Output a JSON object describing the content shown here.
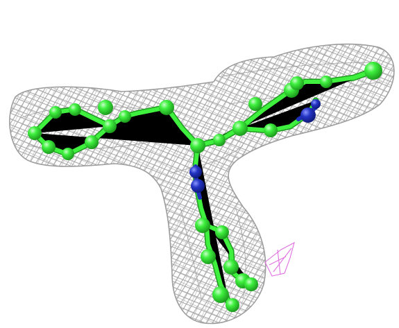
{
  "colors": {
    "background": "#ffffff",
    "mesh": "#9a9a9a",
    "carbon_atom": "#3ff03f",
    "carbon_highlight": "#a8ffa8",
    "carbon_shadow": "#1f9c1f",
    "nitrogen_atom": "#1f2fb8",
    "nitrogen_highlight": "#7a86f0",
    "bond": "#38e038",
    "bond_shadow": "#1f9c1f",
    "difference_density": "#e070e0"
  }
}
